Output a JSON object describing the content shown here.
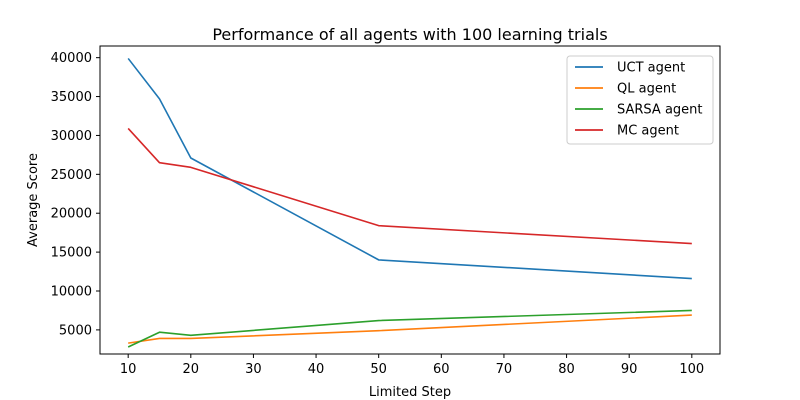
{
  "chart_data": {
    "type": "line",
    "title": "Performance of all agents with 100 learning trials",
    "xlabel": "Limited Step",
    "ylabel": "Average Score",
    "x": [
      10,
      15,
      20,
      50,
      100
    ],
    "xlim": [
      5.5,
      104.5
    ],
    "ylim": [
      1900,
      41500
    ],
    "xticks": [
      10,
      20,
      30,
      40,
      50,
      60,
      70,
      80,
      90,
      100
    ],
    "yticks": [
      5000,
      10000,
      15000,
      20000,
      25000,
      30000,
      35000,
      40000
    ],
    "grid": false,
    "legend_position": "top-right",
    "series": [
      {
        "name": "UCT agent",
        "color": "#1f77b4",
        "values": [
          39900,
          34700,
          27100,
          14000,
          11600
        ]
      },
      {
        "name": "QL agent",
        "color": "#ff7f0e",
        "values": [
          3300,
          3900,
          3900,
          4900,
          6900
        ]
      },
      {
        "name": "SARSA agent",
        "color": "#2ca02c",
        "values": [
          2800,
          4700,
          4300,
          6200,
          7500
        ]
      },
      {
        "name": "MC agent",
        "color": "#d62728",
        "values": [
          30900,
          26500,
          25900,
          18400,
          16100
        ]
      }
    ]
  }
}
